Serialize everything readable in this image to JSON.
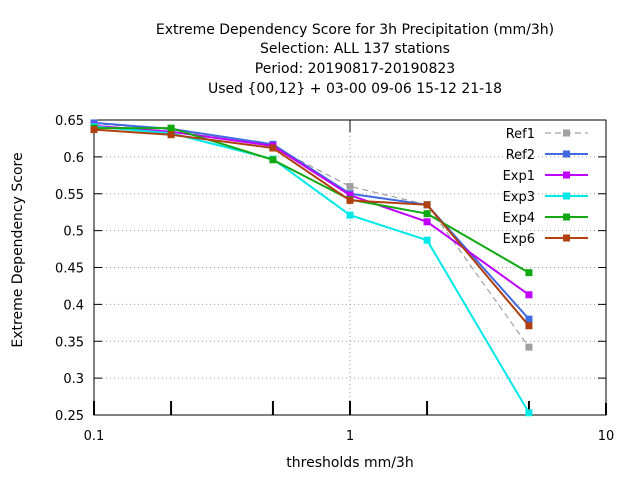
{
  "title_lines": [
    "Extreme Dependency Score  for 3h Precipitation (mm/3h)",
    "Selection: ALL    137 stations",
    "Period: 20190817-20190823",
    "Used {00,12} + 03-00 09-06 15-12 21-18"
  ],
  "chart_data": {
    "type": "line",
    "xlabel": "thresholds mm/3h",
    "ylabel": "Extreme Dependency Score",
    "xscale": "log",
    "xlim": [
      0.1,
      10
    ],
    "ylim": [
      0.25,
      0.65
    ],
    "x_ticks": [
      "0.1",
      "1",
      "10"
    ],
    "y_ticks": [
      "0.25",
      "0.3",
      "0.35",
      "0.4",
      "0.45",
      "0.5",
      "0.55",
      "0.6",
      "0.65"
    ],
    "grid": true,
    "legend_position": "top-right",
    "x": [
      0.1,
      0.2,
      0.5,
      1,
      2,
      5
    ],
    "series": [
      {
        "name": "Ref1",
        "color": "#a0a0a0",
        "dashed": true,
        "values": [
          0.645,
          0.637,
          0.614,
          0.56,
          0.535,
          0.342
        ]
      },
      {
        "name": "Ref2",
        "color": "#4169e1",
        "dashed": false,
        "values": [
          0.646,
          0.638,
          0.617,
          0.55,
          0.535,
          0.38
        ]
      },
      {
        "name": "Exp1",
        "color": "#c000ff",
        "dashed": false,
        "values": [
          0.642,
          0.634,
          0.615,
          0.548,
          0.512,
          0.413
        ]
      },
      {
        "name": "Exp3",
        "color": "#00e8e8",
        "dashed": false,
        "values": [
          0.641,
          0.632,
          0.597,
          0.521,
          0.487,
          0.253
        ]
      },
      {
        "name": "Exp4",
        "color": "#12a812",
        "dashed": false,
        "values": [
          0.639,
          0.639,
          0.596,
          0.542,
          0.523,
          0.443
        ]
      },
      {
        "name": "Exp6",
        "color": "#b04010",
        "dashed": false,
        "values": [
          0.637,
          0.63,
          0.612,
          0.541,
          0.535,
          0.371
        ]
      }
    ]
  }
}
